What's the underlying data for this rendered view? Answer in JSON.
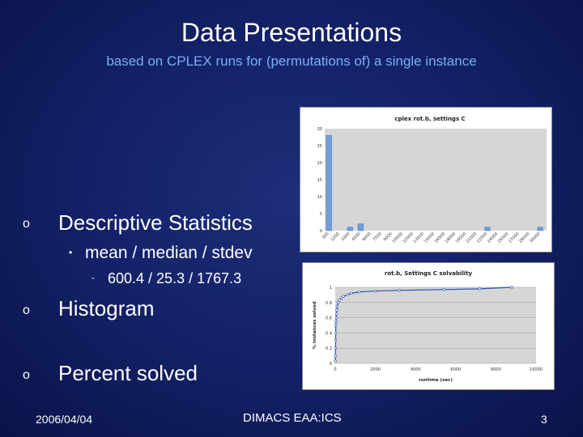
{
  "slide": {
    "title": "Data Presentations",
    "subtitle": "based on CPLEX runs for (permutations of) a single instance",
    "bullets": [
      {
        "marker": "o",
        "text": "Descriptive Statistics"
      },
      {
        "marker": "•",
        "text": "mean / median / stdev"
      },
      {
        "marker": "-",
        "text": "600.4 / 25.3 / 1767.3"
      },
      {
        "marker": "o",
        "text": "Histogram"
      },
      {
        "marker": "o",
        "text": "Percent solved"
      }
    ],
    "footer": {
      "date": "2006/04/04",
      "center": "DIMACS EAA:ICS",
      "page": "3"
    }
  },
  "chart_data": [
    {
      "type": "bar",
      "title": "cplex rot.b, settings C",
      "yticks": [
        "30",
        "25",
        "20",
        "15",
        "10",
        "5",
        "0"
      ],
      "ylim": [
        0,
        30
      ],
      "categories": [
        "300",
        "1200",
        "3300",
        "4500",
        "6000",
        "7500",
        "9000",
        "10500",
        "12000",
        "13500",
        "15000",
        "16500",
        "18000",
        "19500",
        "21000",
        "22500",
        "24000",
        "25500",
        "27000",
        "28500",
        "30000"
      ],
      "values": [
        28,
        0,
        1,
        2,
        0,
        0,
        0,
        0,
        0,
        0,
        0,
        0,
        0,
        0,
        0,
        1,
        0,
        0,
        0,
        0,
        1
      ]
    },
    {
      "type": "line",
      "title": "rot.b, Settings C solvability",
      "xlabel": "runtime (sec)",
      "ylabel": "% instances solved",
      "xlim": [
        0,
        10000
      ],
      "ylim": [
        0,
        1
      ],
      "xticks": [
        "0",
        "2000",
        "4000",
        "6000",
        "8000",
        "10000"
      ],
      "yticks": [
        "1",
        "0.8",
        "0.6",
        "0.4",
        "0.2",
        "0"
      ],
      "x": [
        0,
        10,
        15,
        20,
        25,
        30,
        40,
        50,
        60,
        80,
        100,
        150,
        200,
        300,
        400,
        600,
        800,
        1200,
        2000,
        3200,
        5400,
        7200,
        8800
      ],
      "y": [
        0.03,
        0.1,
        0.2,
        0.3,
        0.4,
        0.5,
        0.55,
        0.6,
        0.65,
        0.7,
        0.75,
        0.8,
        0.83,
        0.86,
        0.88,
        0.9,
        0.92,
        0.94,
        0.95,
        0.96,
        0.97,
        0.98,
        1.0
      ]
    }
  ]
}
